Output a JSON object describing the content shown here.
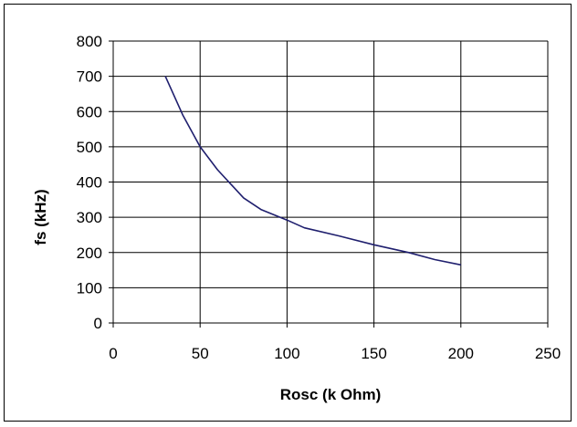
{
  "chart_data": {
    "type": "line",
    "title": "",
    "xlabel": "Rosc (k Ohm)",
    "ylabel": "fs (kHz)",
    "xlim": [
      0,
      250
    ],
    "ylim": [
      0,
      800
    ],
    "x_ticks": [
      0,
      50,
      100,
      150,
      200,
      250
    ],
    "y_ticks": [
      0,
      100,
      200,
      300,
      400,
      500,
      600,
      700,
      800
    ],
    "x_tick_labels": [
      "0",
      "50",
      "100",
      "150",
      "200",
      "250"
    ],
    "y_tick_labels": [
      "0",
      "100",
      "200",
      "300",
      "400",
      "500",
      "600",
      "700",
      "800"
    ],
    "grid": true,
    "legend": "none",
    "series": [
      {
        "color": "#1f1f6e",
        "x": [
          30,
          40,
          50,
          60,
          75,
          85,
          100,
          110,
          130,
          150,
          170,
          185,
          200
        ],
        "y": [
          700,
          590,
          500,
          435,
          355,
          322,
          292,
          270,
          247,
          222,
          200,
          180,
          165
        ]
      }
    ]
  }
}
